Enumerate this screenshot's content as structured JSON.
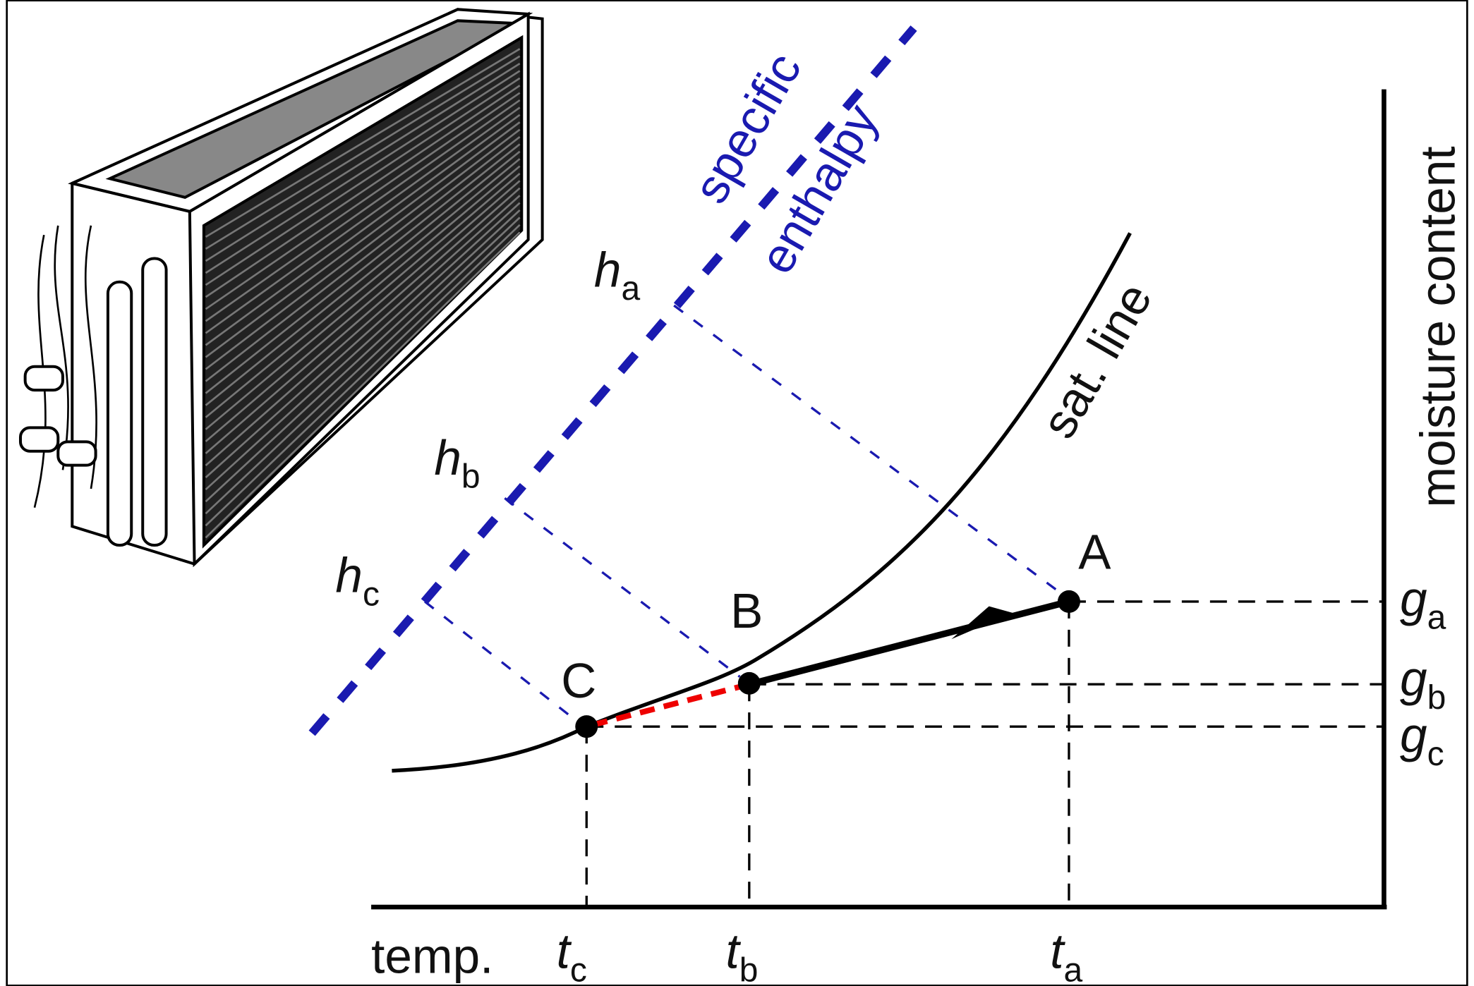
{
  "enthalpy_label": [
    "specific",
    "enthalpy"
  ],
  "saturation_label": "sat. line",
  "y_axis_label": "moisture content",
  "x_axis_label": "temp.",
  "points": [
    {
      "label": "A"
    },
    {
      "label": "B"
    },
    {
      "label": "C"
    }
  ],
  "enthalpy_ticks": [
    {
      "symbol": "h",
      "subscript": "a"
    },
    {
      "symbol": "h",
      "subscript": "b"
    },
    {
      "symbol": "h",
      "subscript": "c"
    }
  ],
  "moisture_ticks": [
    {
      "symbol": "g",
      "subscript": "a"
    },
    {
      "symbol": "g",
      "subscript": "b"
    },
    {
      "symbol": "g",
      "subscript": "c"
    }
  ],
  "temperature_ticks": [
    {
      "symbol": "t",
      "subscript": "c"
    },
    {
      "symbol": "t",
      "subscript": "b"
    },
    {
      "symbol": "t",
      "subscript": "a"
    }
  ]
}
